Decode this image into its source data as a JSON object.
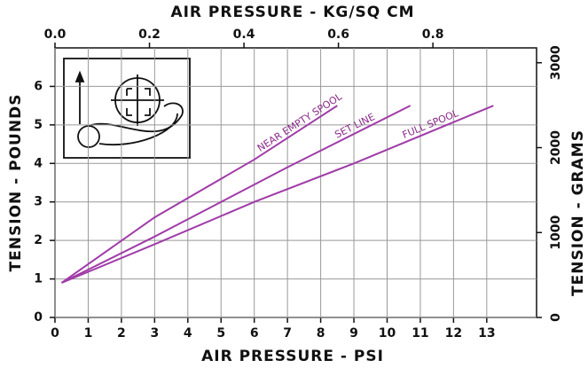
{
  "chart_data": {
    "type": "line",
    "x_label": "AIR PRESSURE - PSI",
    "x2_label": "AIR PRESSURE - KG/SQ CM",
    "y_label": "TENSION - POUNDS",
    "y2_label": "TENSION - GRAMS",
    "xlim": [
      0,
      14.5
    ],
    "xticks": [
      0,
      1,
      2,
      3,
      4,
      5,
      6,
      7,
      8,
      9,
      10,
      11,
      12,
      13
    ],
    "x2lim": [
      0,
      1.0194
    ],
    "x2ticks": [
      {
        "value": 0,
        "label": "0.0"
      },
      0.2,
      0.4,
      0.6,
      0.8
    ],
    "ylim": [
      0,
      7
    ],
    "yticks": [
      0,
      1,
      2,
      3,
      4,
      5,
      6
    ],
    "y2lim": [
      0,
      3175
    ],
    "y2ticks": [
      0,
      1000,
      2000,
      3000
    ],
    "grid": true,
    "series": [
      {
        "name": "NEAR EMPTY SPOOL",
        "color": "#a03ca8",
        "x": [
          0.2,
          3,
          6,
          8.5
        ],
        "values": [
          0.9,
          2.6,
          4.1,
          5.5
        ]
      },
      {
        "name": "SET LINE",
        "color": "#a03ca8",
        "x": [
          0.2,
          3,
          7,
          10.7
        ],
        "values": [
          0.9,
          2.1,
          3.9,
          5.5
        ]
      },
      {
        "name": "FULL SPOOL",
        "color": "#a03ca8",
        "x": [
          0.2,
          3,
          6,
          9,
          13.2
        ],
        "values": [
          0.9,
          1.9,
          3.0,
          4.0,
          5.5
        ]
      }
    ]
  }
}
